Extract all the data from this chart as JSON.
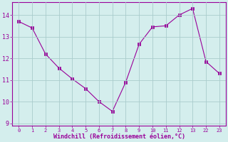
{
  "x": [
    0,
    1,
    2,
    3,
    4,
    5,
    6,
    7,
    8,
    9,
    10,
    11,
    12,
    13,
    22,
    23
  ],
  "y": [
    13.7,
    13.4,
    12.2,
    11.55,
    11.05,
    10.6,
    10.0,
    9.55,
    10.9,
    12.65,
    13.45,
    13.5,
    14.0,
    14.3,
    11.85,
    11.3
  ],
  "line_color": "#990099",
  "marker": "s",
  "marker_size": 2.5,
  "bg_color": "#d4eeed",
  "grid_color": "#aacccc",
  "xlabel": "Windchill (Refroidissement éolien,°C)",
  "xlabel_color": "#990099",
  "tick_color": "#990099",
  "ylim": [
    8.9,
    14.6
  ],
  "yticks": [
    9,
    10,
    11,
    12,
    13,
    14
  ],
  "xtick_labels": [
    "0",
    "1",
    "2",
    "3",
    "4",
    "5",
    "6",
    "7",
    "8",
    "9",
    "10",
    "11",
    "12",
    "13",
    "22",
    "23"
  ],
  "xlim": [
    -0.5,
    15.5
  ],
  "spine_color": "#990099"
}
